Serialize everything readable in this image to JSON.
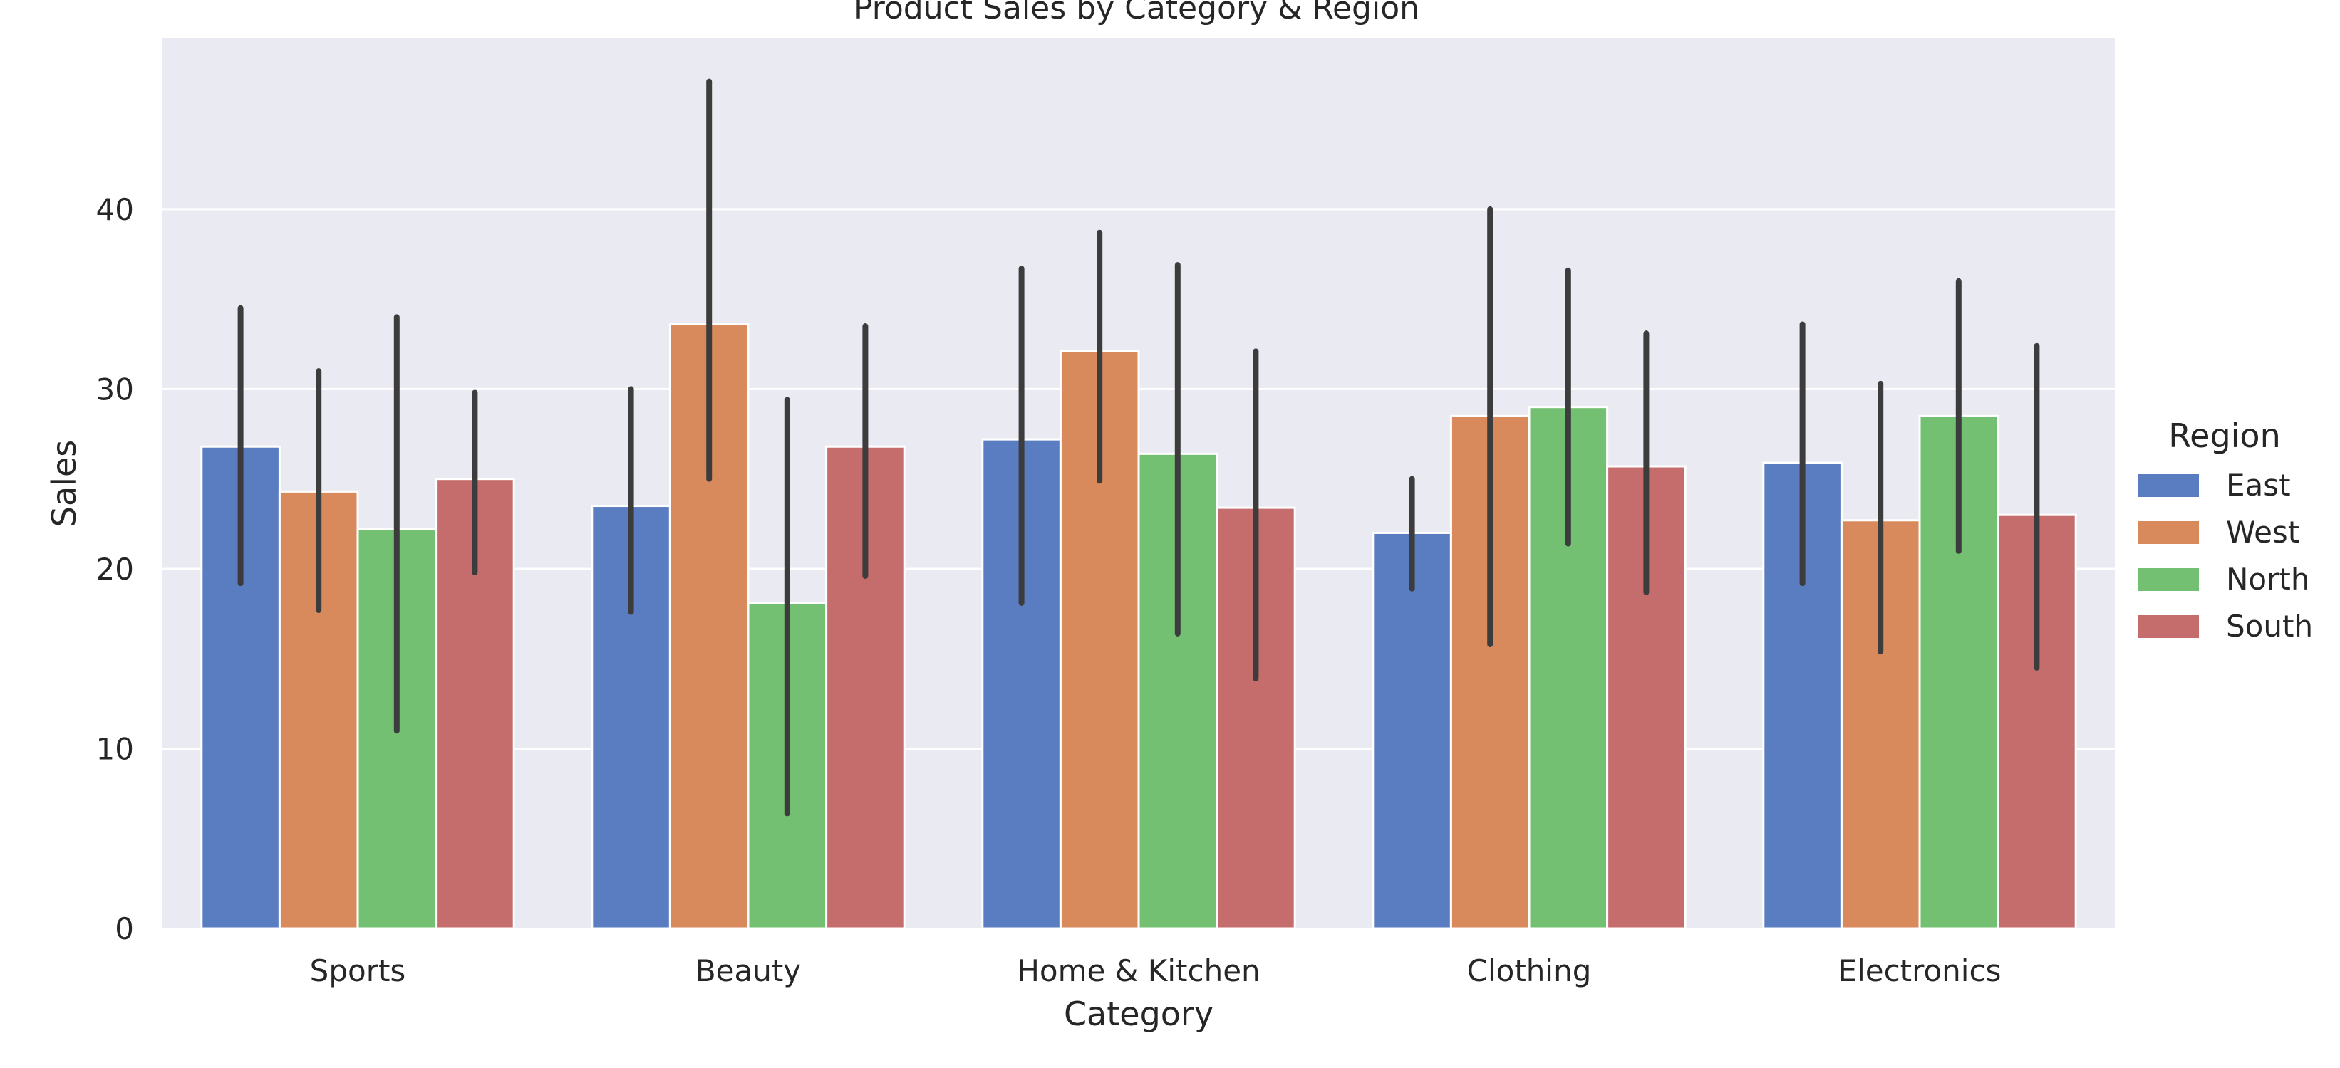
{
  "chart_data": {
    "type": "bar",
    "title": "Product Sales by Category & Region",
    "xlabel": "Category",
    "ylabel": "Sales",
    "ylim": [
      0,
      49.5
    ],
    "yticks": [
      0,
      10,
      20,
      30,
      40
    ],
    "grid": true,
    "categories": [
      "Sports",
      "Beauty",
      "Home & Kitchen",
      "Clothing",
      "Electronics"
    ],
    "legend": {
      "title": "Region",
      "placement": "right"
    },
    "series": [
      {
        "name": "East",
        "color": "#5a7dc1",
        "values": [
          26.8,
          23.5,
          27.2,
          22.0,
          25.9
        ],
        "ci_low": [
          19.2,
          17.6,
          18.1,
          18.9,
          19.2
        ],
        "ci_high": [
          34.5,
          30.0,
          36.7,
          25.0,
          33.6
        ]
      },
      {
        "name": "West",
        "color": "#d98a5c",
        "values": [
          24.3,
          33.6,
          32.1,
          28.5,
          22.7
        ],
        "ci_low": [
          17.7,
          25.0,
          24.9,
          15.8,
          15.4
        ],
        "ci_high": [
          31.0,
          47.1,
          38.7,
          40.0,
          30.3
        ]
      },
      {
        "name": "North",
        "color": "#74c072",
        "values": [
          22.2,
          18.1,
          26.4,
          29.0,
          28.5
        ],
        "ci_low": [
          11.0,
          6.4,
          16.4,
          21.4,
          21.0
        ],
        "ci_high": [
          34.0,
          29.4,
          36.9,
          36.6,
          36.0
        ]
      },
      {
        "name": "South",
        "color": "#c56d6d",
        "values": [
          25.0,
          26.8,
          23.4,
          25.7,
          23.0
        ],
        "ci_low": [
          19.8,
          19.6,
          13.9,
          18.7,
          14.5
        ],
        "ci_high": [
          29.8,
          33.5,
          32.1,
          33.1,
          32.4
        ]
      }
    ]
  }
}
